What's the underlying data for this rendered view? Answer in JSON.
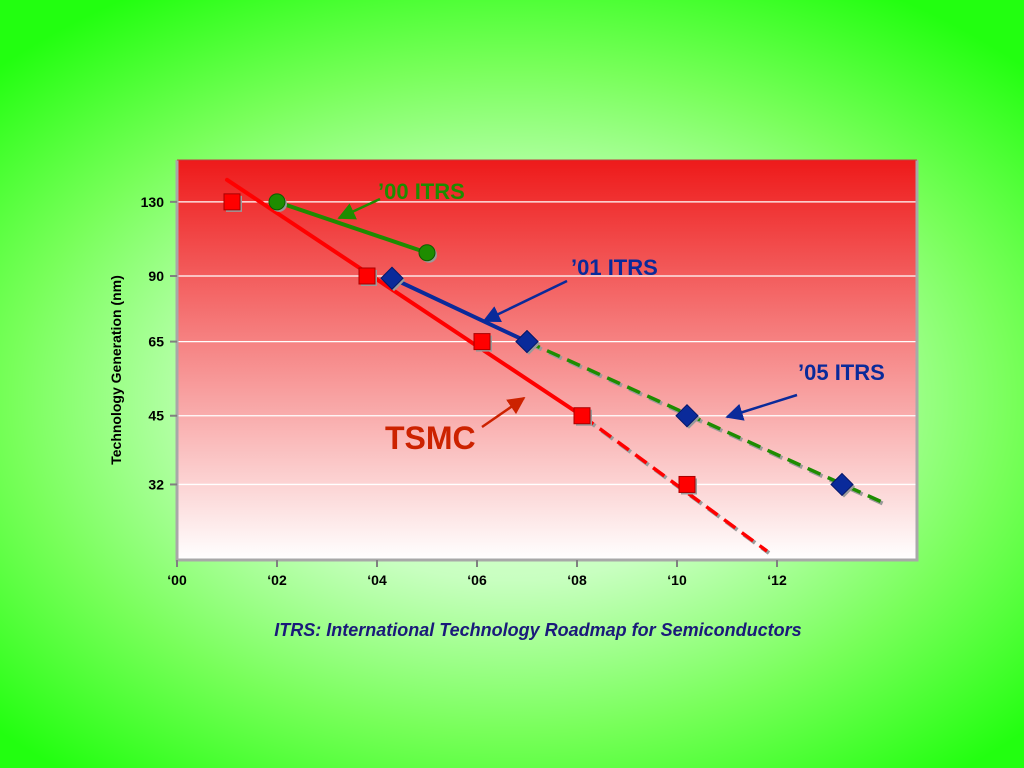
{
  "chart_data": {
    "type": "line",
    "ylabel": "Technology Generation (nm)",
    "y_ticks": [
      "130",
      "90",
      "65",
      "45",
      "32"
    ],
    "x_ticks": [
      "‘00",
      "‘02",
      "‘04",
      "‘06",
      "‘08",
      "‘10",
      "‘12"
    ],
    "y_scale": "log",
    "ylim": [
      22,
      160
    ],
    "xlim": [
      2000,
      2014.8
    ],
    "grid": true,
    "series": [
      {
        "name": "TSMC",
        "color": "#ff0000",
        "marker": "square",
        "points": [
          [
            2001.1,
            130
          ],
          [
            2003.8,
            90
          ],
          [
            2006.1,
            65
          ],
          [
            2008.1,
            45
          ],
          [
            2010.2,
            32
          ]
        ],
        "trend_solid": [
          [
            2001.0,
            145
          ],
          [
            2008.1,
            45
          ]
        ],
        "trend_dashed": [
          [
            2008.1,
            45
          ],
          [
            2011.8,
            23
          ]
        ]
      },
      {
        "name": "’00 ITRS",
        "color": "#1e8c00",
        "marker": "circle",
        "points": [
          [
            2002.0,
            130
          ],
          [
            2005.0,
            101
          ]
        ],
        "trend_solid": [
          [
            2002.0,
            130
          ],
          [
            2005.0,
            101
          ]
        ]
      },
      {
        "name": "’01 ITRS",
        "color": "#0a2a9a",
        "marker": "diamond",
        "points": [
          [
            2004.3,
            89
          ],
          [
            2007.0,
            65
          ]
        ],
        "trend_solid": [
          [
            2004.3,
            89
          ],
          [
            2007.0,
            65
          ]
        ]
      },
      {
        "name": "’05 ITRS",
        "color": "#0a2a9a",
        "marker": "diamond",
        "line_color": "#1e8c00",
        "points": [
          [
            2007.0,
            65
          ],
          [
            2010.2,
            45
          ],
          [
            2013.3,
            32
          ]
        ],
        "trend_dashed": [
          [
            2007.0,
            65
          ],
          [
            2014.2,
            29
          ]
        ]
      }
    ]
  },
  "annotations": {
    "itrs00": "’00 ITRS",
    "itrs01": "’01 ITRS",
    "itrs05": "’05 ITRS",
    "tsmc": "TSMC"
  },
  "footnote": "ITRS: International Technology Roadmap for Semiconductors",
  "colors": {
    "plot_top": "#ee1a1a",
    "plot_bottom": "#ffffff",
    "frame": "#a8a8a8"
  }
}
